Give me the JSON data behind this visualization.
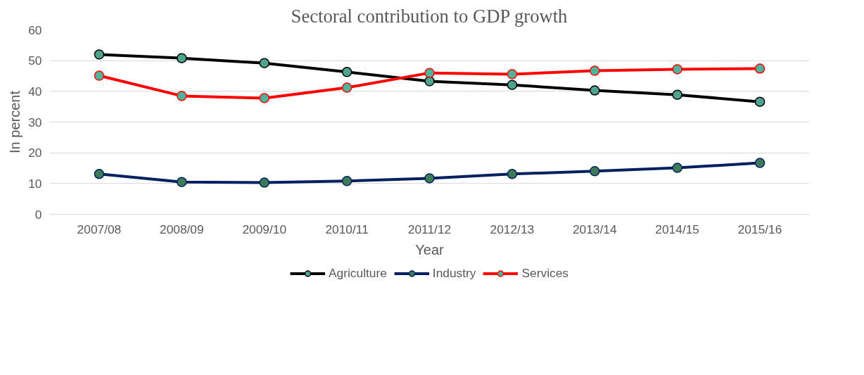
{
  "chart_data": {
    "type": "line",
    "title": "Sectoral contribution to GDP growth",
    "xlabel": "Year",
    "ylabel": "In percent",
    "categories": [
      "2007/08",
      "2008/09",
      "2009/10",
      "2010/11",
      "2011/12",
      "2012/13",
      "2013/14",
      "2014/15",
      "2015/16"
    ],
    "series": [
      {
        "name": "Agriculture",
        "color": "#000000",
        "values": [
          52.0,
          50.8,
          49.2,
          46.3,
          43.3,
          42.1,
          40.3,
          38.9,
          36.6
        ]
      },
      {
        "name": "Industry",
        "color": "#002060",
        "values": [
          13.1,
          10.5,
          10.3,
          10.8,
          11.7,
          13.1,
          14.0,
          15.1,
          16.7
        ]
      },
      {
        "name": "Services",
        "color": "#ff0000",
        "values": [
          45.1,
          38.5,
          37.8,
          41.2,
          46.0,
          45.6,
          46.7,
          47.2,
          47.4
        ]
      }
    ],
    "ylim": [
      0,
      60
    ],
    "yticks": [
      0,
      10,
      20,
      30,
      40,
      50,
      60
    ],
    "grid": "y",
    "legend": "bottom",
    "marker": "circle",
    "line_style": "solid"
  }
}
